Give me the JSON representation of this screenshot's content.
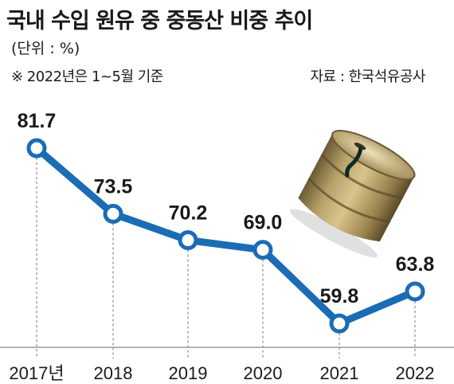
{
  "title": "국내 수입 원유 중 중동산 비중 추이",
  "unit": "(단위 : %)",
  "note": "※ 2022년은 1~5월 기준",
  "source": "자료 : 한국석유공사",
  "colors": {
    "line": "#1a6cb5",
    "marker_fill": "#ffffff",
    "grid": "#8c8c8c",
    "text": "#1a1a1a"
  },
  "illustration": "oil-barrel",
  "chart_data": {
    "type": "line",
    "title": "국내 수입 원유 중 중동산 비중 추이",
    "categories": [
      "2017년",
      "2018",
      "2019",
      "2020",
      "2021",
      "2022"
    ],
    "values": [
      81.7,
      73.5,
      70.2,
      69.0,
      59.8,
      63.8
    ],
    "data_labels": [
      "81.7",
      "73.5",
      "70.2",
      "69.0",
      "59.8",
      "63.8"
    ],
    "grid": "vertical dashed drop lines",
    "legend": "none"
  }
}
